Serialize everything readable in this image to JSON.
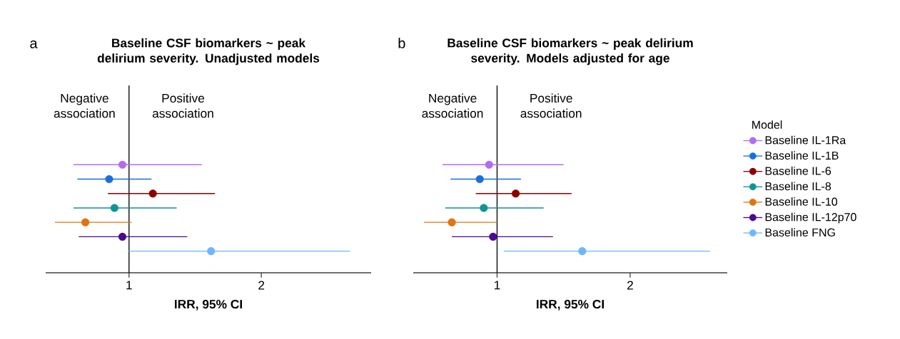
{
  "chart_data": [
    {
      "type": "scatter",
      "orientation": "horizontal",
      "title": "Baseline CSF biomarkers ~ peak delirium severity. Unadjusted models",
      "xlabel": "IRR, 95% CI",
      "annotations": [
        "a",
        "Negative association",
        "Positive association"
      ],
      "categories": [
        null,
        null,
        null,
        null,
        null,
        null,
        null,
        null,
        null,
        null,
        null,
        null,
        null
      ],
      "xlim": [
        0.37,
        2.83
      ],
      "xticks": [
        1,
        2
      ],
      "tick_labels": "x",
      "marker": "circle",
      "legend": false,
      "ref_lines": [
        {
          "axis": "x",
          "value": 1,
          "color": "#000000"
        }
      ],
      "series": [
        {
          "color": "#b36bf2",
          "values": [
            null,
            null,
            null,
            null,
            null,
            0.95,
            null,
            null,
            null,
            null,
            null,
            null,
            null
          ],
          "errors": [
            null,
            null,
            null,
            null,
            null,
            [
              0.58,
              1.55
            ],
            null,
            null,
            null,
            null,
            null,
            null,
            null
          ]
        },
        {
          "color": "#1a6fdc",
          "values": [
            null,
            null,
            null,
            null,
            null,
            null,
            0.85,
            null,
            null,
            null,
            null,
            null,
            null
          ],
          "errors": [
            null,
            null,
            null,
            null,
            null,
            null,
            [
              0.61,
              1.17
            ],
            null,
            null,
            null,
            null,
            null,
            null
          ]
        },
        {
          "color": "#8b0000",
          "values": [
            null,
            null,
            null,
            null,
            null,
            null,
            null,
            1.18,
            null,
            null,
            null,
            null,
            null
          ],
          "errors": [
            null,
            null,
            null,
            null,
            null,
            null,
            null,
            [
              0.84,
              1.65
            ],
            null,
            null,
            null,
            null,
            null
          ]
        },
        {
          "color": "#0f9590",
          "values": [
            null,
            null,
            null,
            null,
            null,
            null,
            null,
            null,
            0.89,
            null,
            null,
            null,
            null
          ],
          "errors": [
            null,
            null,
            null,
            null,
            null,
            null,
            null,
            null,
            [
              0.58,
              1.36
            ],
            null,
            null,
            null,
            null
          ]
        },
        {
          "color": "#e07410",
          "values": [
            null,
            null,
            null,
            null,
            null,
            null,
            null,
            null,
            null,
            0.67,
            null,
            null,
            null
          ],
          "errors": [
            null,
            null,
            null,
            null,
            null,
            null,
            null,
            null,
            null,
            [
              0.44,
              1.02
            ],
            null,
            null,
            null
          ]
        },
        {
          "color": "#4b0a8f",
          "values": [
            null,
            null,
            null,
            null,
            null,
            null,
            null,
            null,
            null,
            null,
            0.95,
            null,
            null
          ],
          "errors": [
            null,
            null,
            null,
            null,
            null,
            null,
            null,
            null,
            null,
            null,
            [
              0.62,
              1.44
            ],
            null,
            null
          ]
        },
        {
          "color": "#6db6ff",
          "values": [
            null,
            null,
            null,
            null,
            null,
            null,
            null,
            null,
            null,
            null,
            null,
            1.62,
            null
          ],
          "errors": [
            null,
            null,
            null,
            null,
            null,
            null,
            null,
            null,
            null,
            null,
            null,
            [
              0.99,
              2.67
            ],
            null
          ]
        }
      ]
    },
    {
      "type": "scatter",
      "orientation": "horizontal",
      "title": "Baseline CSF biomarkers ~ peak delirium severity. Models adjusted for age",
      "xlabel": "IRR, 95% CI",
      "annotations": [
        "b",
        "Negative association",
        "Positive association"
      ],
      "categories": [
        null,
        null,
        null,
        null,
        null,
        null,
        null,
        null,
        null,
        null,
        null,
        null,
        null
      ],
      "xlim": [
        0.37,
        2.73
      ],
      "xticks": [
        1,
        2
      ],
      "tick_labels": "x",
      "marker": "circle",
      "legend": "right",
      "legend_title": "Model",
      "ref_lines": [
        {
          "axis": "x",
          "value": 1,
          "color": "#000000"
        }
      ],
      "series": [
        {
          "name": "Baseline IL-1Ra",
          "color": "#b36bf2",
          "values": [
            null,
            null,
            null,
            null,
            null,
            0.94,
            null,
            null,
            null,
            null,
            null,
            null,
            null
          ],
          "errors": [
            null,
            null,
            null,
            null,
            null,
            [
              0.59,
              1.5
            ],
            null,
            null,
            null,
            null,
            null,
            null,
            null
          ]
        },
        {
          "name": "Baseline IL-1B",
          "color": "#1a6fdc",
          "values": [
            null,
            null,
            null,
            null,
            null,
            null,
            0.87,
            null,
            null,
            null,
            null,
            null,
            null
          ],
          "errors": [
            null,
            null,
            null,
            null,
            null,
            null,
            [
              0.65,
              1.18
            ],
            null,
            null,
            null,
            null,
            null,
            null
          ]
        },
        {
          "name": "Baseline IL-6",
          "color": "#8b0000",
          "values": [
            null,
            null,
            null,
            null,
            null,
            null,
            null,
            1.14,
            null,
            null,
            null,
            null,
            null
          ],
          "errors": [
            null,
            null,
            null,
            null,
            null,
            null,
            null,
            [
              0.84,
              1.56
            ],
            null,
            null,
            null,
            null,
            null
          ]
        },
        {
          "name": "Baseline IL-8",
          "color": "#0f9590",
          "values": [
            null,
            null,
            null,
            null,
            null,
            null,
            null,
            null,
            0.9,
            null,
            null,
            null,
            null
          ],
          "errors": [
            null,
            null,
            null,
            null,
            null,
            null,
            null,
            null,
            [
              0.61,
              1.35
            ],
            null,
            null,
            null,
            null
          ]
        },
        {
          "name": "Baseline IL-10",
          "color": "#e07410",
          "values": [
            null,
            null,
            null,
            null,
            null,
            null,
            null,
            null,
            null,
            0.66,
            null,
            null,
            null
          ],
          "errors": [
            null,
            null,
            null,
            null,
            null,
            null,
            null,
            null,
            null,
            [
              0.45,
              1.0
            ],
            null,
            null,
            null
          ]
        },
        {
          "name": "Baseline IL-12p70",
          "color": "#4b0a8f",
          "values": [
            null,
            null,
            null,
            null,
            null,
            null,
            null,
            null,
            null,
            null,
            0.97,
            null,
            null
          ],
          "errors": [
            null,
            null,
            null,
            null,
            null,
            null,
            null,
            null,
            null,
            null,
            [
              0.66,
              1.42
            ],
            null,
            null
          ]
        },
        {
          "name": "Baseline FNG",
          "color": "#6db6ff",
          "values": [
            null,
            null,
            null,
            null,
            null,
            null,
            null,
            null,
            null,
            null,
            null,
            1.64,
            null
          ],
          "errors": [
            null,
            null,
            null,
            null,
            null,
            null,
            null,
            null,
            null,
            null,
            null,
            [
              1.05,
              2.6
            ],
            null
          ]
        }
      ]
    }
  ]
}
